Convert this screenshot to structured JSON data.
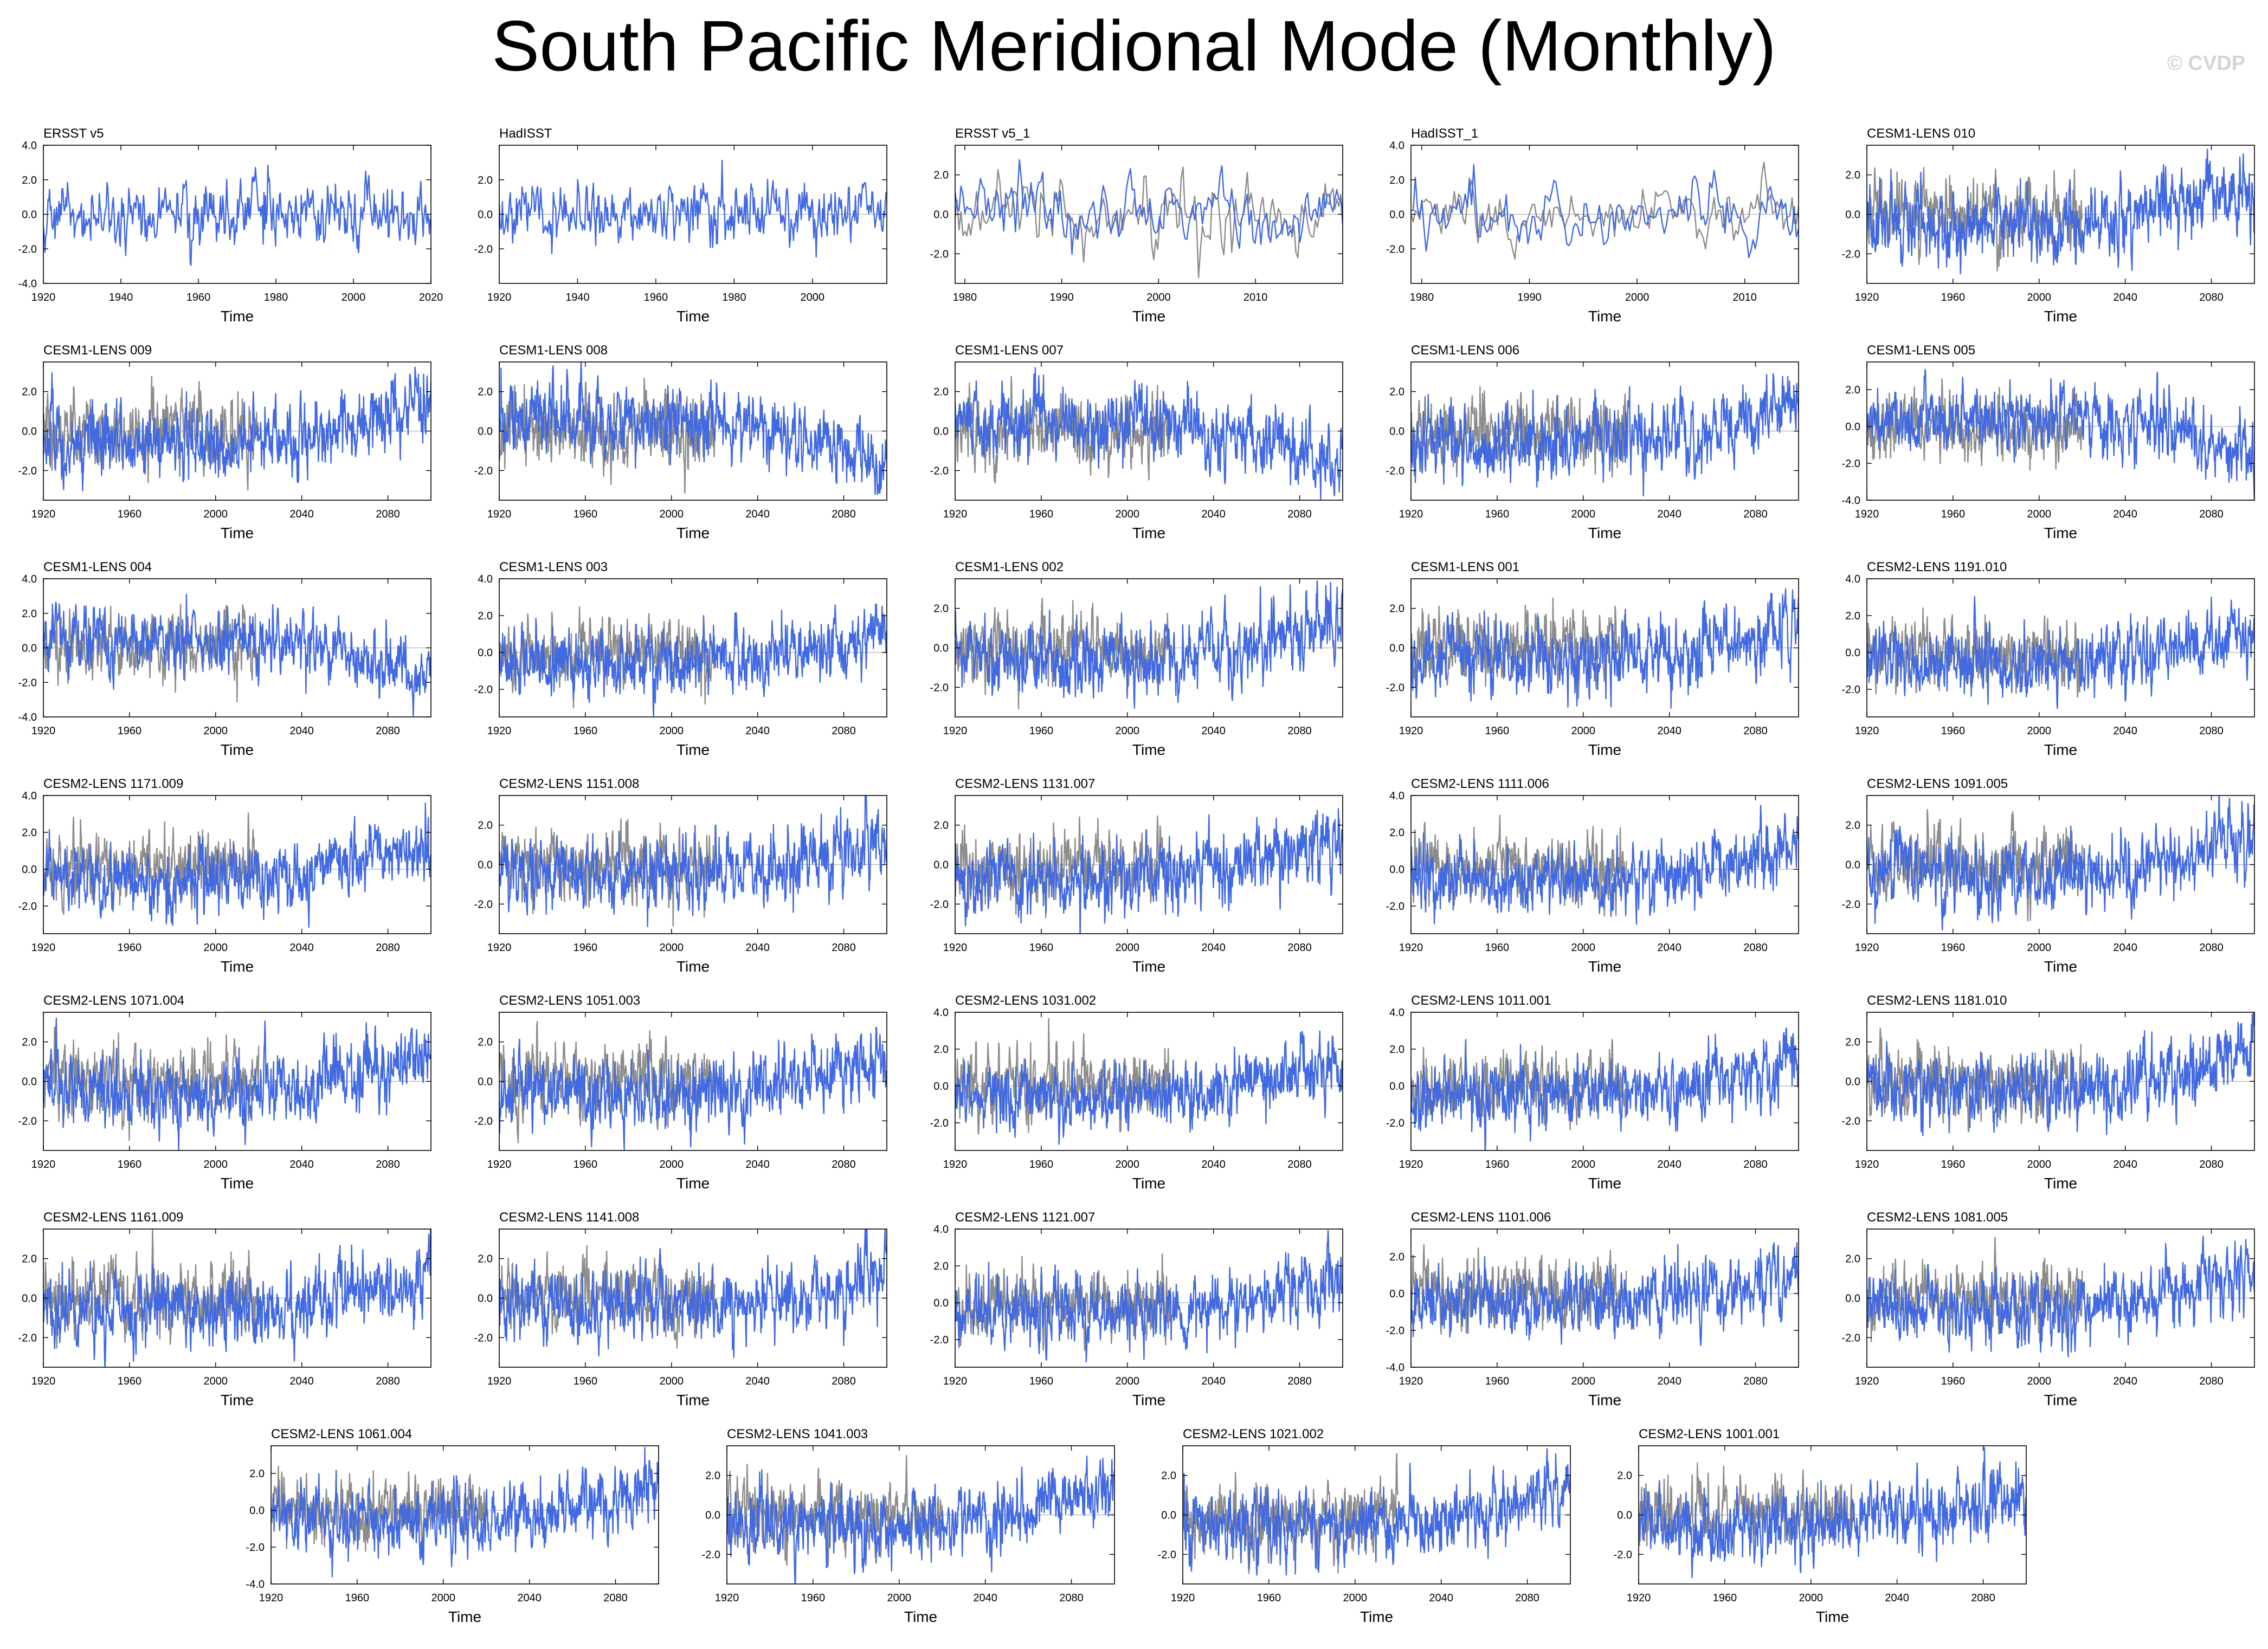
{
  "title": "South Pacific Meridional Mode (Monthly)",
  "copyright": "© CVDP",
  "colors": {
    "primary_series": "#4169e1",
    "reference_series": "#8c8c8c",
    "axes": "#000000"
  },
  "chart_data": {
    "type": "line",
    "xlabel": "Time",
    "panels": [
      {
        "name": "ERSST v5",
        "xticks": [
          "1920",
          "1940",
          "1960",
          "1980",
          "2000",
          "2020"
        ],
        "xlim": [
          1920,
          2020
        ],
        "yticks": [
          "4.0",
          "2.0",
          "0.0",
          "-2.0",
          "-4.0"
        ],
        "ylim": [
          -4,
          4
        ],
        "reference_series": false,
        "trend": "flat",
        "peak_year": 1977
      },
      {
        "name": "HadISST",
        "xticks": [
          "1920",
          "1940",
          "1960",
          "1980",
          "2000"
        ],
        "xlim": [
          1920,
          2019
        ],
        "yticks": [
          "2.0",
          "0.0",
          "-2.0"
        ],
        "ylim": [
          -4,
          4
        ],
        "reference_series": false,
        "trend": "flat",
        "peak_year": 1977
      },
      {
        "name": "ERSST v5_1",
        "xticks": [
          "1980",
          "1990",
          "2000",
          "2010"
        ],
        "xlim": [
          1979,
          2019
        ],
        "yticks": [
          "2.0",
          "0.0",
          "-2.0"
        ],
        "ylim": [
          -3.5,
          3.5
        ],
        "reference_series": true,
        "trend": "flat"
      },
      {
        "name": "HadISST_1",
        "xticks": [
          "1980",
          "1990",
          "2000",
          "2010"
        ],
        "xlim": [
          1979,
          2015
        ],
        "yticks": [
          "4.0",
          "2.0",
          "0.0",
          "-2.0"
        ],
        "ylim": [
          -4,
          4
        ],
        "reference_series": true,
        "trend": "flat"
      },
      {
        "name": "CESM1-LENS 010",
        "xticks": [
          "1920",
          "1960",
          "2000",
          "2040",
          "2080"
        ],
        "xlim": [
          1920,
          2100
        ],
        "yticks": [
          "2.0",
          "0.0",
          "-2.0"
        ],
        "ylim": [
          -3.5,
          3.5
        ],
        "reference_series": true,
        "trend": "up"
      },
      {
        "name": "CESM1-LENS 009",
        "xticks": [
          "1920",
          "1960",
          "2000",
          "2040",
          "2080"
        ],
        "xlim": [
          1920,
          2100
        ],
        "yticks": [
          "2.0",
          "0.0",
          "-2.0"
        ],
        "ylim": [
          -3.5,
          3.5
        ],
        "reference_series": true,
        "trend": "up"
      },
      {
        "name": "CESM1-LENS 008",
        "xticks": [
          "1920",
          "1960",
          "2000",
          "2040",
          "2080"
        ],
        "xlim": [
          1920,
          2100
        ],
        "yticks": [
          "2.0",
          "0.0",
          "-2.0"
        ],
        "ylim": [
          -3.5,
          3.5
        ],
        "reference_series": true,
        "trend": "down"
      },
      {
        "name": "CESM1-LENS 007",
        "xticks": [
          "1920",
          "1960",
          "2000",
          "2040",
          "2080"
        ],
        "xlim": [
          1920,
          2100
        ],
        "yticks": [
          "2.0",
          "0.0",
          "-2.0"
        ],
        "ylim": [
          -3.5,
          3.5
        ],
        "reference_series": true,
        "trend": "down"
      },
      {
        "name": "CESM1-LENS 006",
        "xticks": [
          "1920",
          "1960",
          "2000",
          "2040",
          "2080"
        ],
        "xlim": [
          1920,
          2100
        ],
        "yticks": [
          "2.0",
          "0.0",
          "-2.0"
        ],
        "ylim": [
          -3.5,
          3.5
        ],
        "reference_series": true,
        "trend": "up"
      },
      {
        "name": "CESM1-LENS 005",
        "xticks": [
          "1920",
          "1960",
          "2000",
          "2040",
          "2080"
        ],
        "xlim": [
          1920,
          2100
        ],
        "yticks": [
          "2.0",
          "0.0",
          "-2.0",
          "-4.0"
        ],
        "ylim": [
          -4,
          3.5
        ],
        "reference_series": true,
        "trend": "down"
      },
      {
        "name": "CESM1-LENS 004",
        "xticks": [
          "1920",
          "1960",
          "2000",
          "2040",
          "2080"
        ],
        "xlim": [
          1920,
          2100
        ],
        "yticks": [
          "4.0",
          "2.0",
          "0.0",
          "-2.0",
          "-4.0"
        ],
        "ylim": [
          -4,
          4
        ],
        "reference_series": true,
        "trend": "down"
      },
      {
        "name": "CESM1-LENS 003",
        "xticks": [
          "1920",
          "1960",
          "2000",
          "2040",
          "2080"
        ],
        "xlim": [
          1920,
          2100
        ],
        "yticks": [
          "4.0",
          "2.0",
          "0.0",
          "-2.0"
        ],
        "ylim": [
          -3.5,
          4
        ],
        "reference_series": true,
        "trend": "up"
      },
      {
        "name": "CESM1-LENS 002",
        "xticks": [
          "1920",
          "1960",
          "2000",
          "2040",
          "2080"
        ],
        "xlim": [
          1920,
          2100
        ],
        "yticks": [
          "2.0",
          "0.0",
          "-2.0"
        ],
        "ylim": [
          -3.5,
          3.5
        ],
        "reference_series": true,
        "trend": "up"
      },
      {
        "name": "CESM1-LENS 001",
        "xticks": [
          "1920",
          "1960",
          "2000",
          "2040",
          "2080"
        ],
        "xlim": [
          1920,
          2100
        ],
        "yticks": [
          "2.0",
          "0.0",
          "-2.0"
        ],
        "ylim": [
          -3.5,
          3.5
        ],
        "reference_series": true,
        "trend": "up"
      },
      {
        "name": "CESM2-LENS 1191.010",
        "xticks": [
          "1920",
          "1960",
          "2000",
          "2040",
          "2080"
        ],
        "xlim": [
          1920,
          2100
        ],
        "yticks": [
          "4.0",
          "2.0",
          "0.0",
          "-2.0"
        ],
        "ylim": [
          -3.5,
          4
        ],
        "reference_series": true,
        "trend": "up"
      },
      {
        "name": "CESM2-LENS 1171.009",
        "xticks": [
          "1920",
          "1960",
          "2000",
          "2040",
          "2080"
        ],
        "xlim": [
          1920,
          2100
        ],
        "yticks": [
          "4.0",
          "2.0",
          "0.0",
          "-2.0"
        ],
        "ylim": [
          -3.5,
          4
        ],
        "reference_series": true,
        "trend": "up"
      },
      {
        "name": "CESM2-LENS 1151.008",
        "xticks": [
          "1920",
          "1960",
          "2000",
          "2040",
          "2080"
        ],
        "xlim": [
          1920,
          2100
        ],
        "yticks": [
          "2.0",
          "0.0",
          "-2.0"
        ],
        "ylim": [
          -3.5,
          3.5
        ],
        "reference_series": true,
        "trend": "up"
      },
      {
        "name": "CESM2-LENS 1131.007",
        "xticks": [
          "1920",
          "1960",
          "2000",
          "2040",
          "2080"
        ],
        "xlim": [
          1920,
          2100
        ],
        "yticks": [
          "2.0",
          "0.0",
          "-2.0"
        ],
        "ylim": [
          -3.5,
          3.5
        ],
        "reference_series": true,
        "trend": "up"
      },
      {
        "name": "CESM2-LENS 1111.006",
        "xticks": [
          "1920",
          "1960",
          "2000",
          "2040",
          "2080"
        ],
        "xlim": [
          1920,
          2100
        ],
        "yticks": [
          "4.0",
          "2.0",
          "0.0",
          "-2.0"
        ],
        "ylim": [
          -3.5,
          4
        ],
        "reference_series": true,
        "trend": "up"
      },
      {
        "name": "CESM2-LENS 1091.005",
        "xticks": [
          "1920",
          "1960",
          "2000",
          "2040",
          "2080"
        ],
        "xlim": [
          1920,
          2100
        ],
        "yticks": [
          "2.0",
          "0.0",
          "-2.0"
        ],
        "ylim": [
          -3.5,
          3.5
        ],
        "reference_series": true,
        "trend": "up"
      },
      {
        "name": "CESM2-LENS 1071.004",
        "xticks": [
          "1920",
          "1960",
          "2000",
          "2040",
          "2080"
        ],
        "xlim": [
          1920,
          2100
        ],
        "yticks": [
          "2.0",
          "0.0",
          "-2.0"
        ],
        "ylim": [
          -3.5,
          3.5
        ],
        "reference_series": true,
        "trend": "up"
      },
      {
        "name": "CESM2-LENS 1051.003",
        "xticks": [
          "1920",
          "1960",
          "2000",
          "2040",
          "2080"
        ],
        "xlim": [
          1920,
          2100
        ],
        "yticks": [
          "2.0",
          "0.0",
          "-2.0"
        ],
        "ylim": [
          -3.5,
          3.5
        ],
        "reference_series": true,
        "trend": "up"
      },
      {
        "name": "CESM2-LENS 1031.002",
        "xticks": [
          "1920",
          "1960",
          "2000",
          "2040",
          "2080"
        ],
        "xlim": [
          1920,
          2100
        ],
        "yticks": [
          "4.0",
          "2.0",
          "0.0",
          "-2.0"
        ],
        "ylim": [
          -3.5,
          4
        ],
        "reference_series": true,
        "trend": "up"
      },
      {
        "name": "CESM2-LENS 1011.001",
        "xticks": [
          "1920",
          "1960",
          "2000",
          "2040",
          "2080"
        ],
        "xlim": [
          1920,
          2100
        ],
        "yticks": [
          "4.0",
          "2.0",
          "0.0",
          "-2.0"
        ],
        "ylim": [
          -3.5,
          4
        ],
        "reference_series": true,
        "trend": "up"
      },
      {
        "name": "CESM2-LENS 1181.010",
        "xticks": [
          "1920",
          "1960",
          "2000",
          "2040",
          "2080"
        ],
        "xlim": [
          1920,
          2100
        ],
        "yticks": [
          "2.0",
          "0.0",
          "-2.0"
        ],
        "ylim": [
          -3.5,
          3.5
        ],
        "reference_series": true,
        "trend": "up"
      },
      {
        "name": "CESM2-LENS 1161.009",
        "xticks": [
          "1920",
          "1960",
          "2000",
          "2040",
          "2080"
        ],
        "xlim": [
          1920,
          2100
        ],
        "yticks": [
          "2.0",
          "0.0",
          "-2.0"
        ],
        "ylim": [
          -3.5,
          3.5
        ],
        "reference_series": true,
        "trend": "up"
      },
      {
        "name": "CESM2-LENS 1141.008",
        "xticks": [
          "1920",
          "1960",
          "2000",
          "2040",
          "2080"
        ],
        "xlim": [
          1920,
          2100
        ],
        "yticks": [
          "2.0",
          "0.0",
          "-2.0"
        ],
        "ylim": [
          -3.5,
          3.5
        ],
        "reference_series": true,
        "trend": "up"
      },
      {
        "name": "CESM2-LENS 1121.007",
        "xticks": [
          "1920",
          "1960",
          "2000",
          "2040",
          "2080"
        ],
        "xlim": [
          1920,
          2100
        ],
        "yticks": [
          "4.0",
          "2.0",
          "0.0",
          "-2.0"
        ],
        "ylim": [
          -3.5,
          4
        ],
        "reference_series": true,
        "trend": "up"
      },
      {
        "name": "CESM2-LENS 1101.006",
        "xticks": [
          "1920",
          "1960",
          "2000",
          "2040",
          "2080"
        ],
        "xlim": [
          1920,
          2100
        ],
        "yticks": [
          "2.0",
          "0.0",
          "-2.0",
          "-4.0"
        ],
        "ylim": [
          -4,
          3.5
        ],
        "reference_series": true,
        "trend": "up"
      },
      {
        "name": "CESM2-LENS 1081.005",
        "xticks": [
          "1920",
          "1960",
          "2000",
          "2040",
          "2080"
        ],
        "xlim": [
          1920,
          2100
        ],
        "yticks": [
          "2.0",
          "0.0",
          "-2.0"
        ],
        "ylim": [
          -3.5,
          3.5
        ],
        "reference_series": true,
        "trend": "up"
      },
      {
        "name": "CESM2-LENS 1061.004",
        "xticks": [
          "1920",
          "1960",
          "2000",
          "2040",
          "2080"
        ],
        "xlim": [
          1920,
          2100
        ],
        "yticks": [
          "2.0",
          "0.0",
          "-2.0",
          "-4.0"
        ],
        "ylim": [
          -4,
          3.5
        ],
        "reference_series": true,
        "trend": "up"
      },
      {
        "name": "CESM2-LENS 1041.003",
        "xticks": [
          "1920",
          "1960",
          "2000",
          "2040",
          "2080"
        ],
        "xlim": [
          1920,
          2100
        ],
        "yticks": [
          "2.0",
          "0.0",
          "-2.0"
        ],
        "ylim": [
          -3.5,
          3.5
        ],
        "reference_series": true,
        "trend": "up"
      },
      {
        "name": "CESM2-LENS 1021.002",
        "xticks": [
          "1920",
          "1960",
          "2000",
          "2040",
          "2080"
        ],
        "xlim": [
          1920,
          2100
        ],
        "yticks": [
          "2.0",
          "0.0",
          "-2.0"
        ],
        "ylim": [
          -3.5,
          3.5
        ],
        "reference_series": true,
        "trend": "up"
      },
      {
        "name": "CESM2-LENS 1001.001",
        "xticks": [
          "1920",
          "1960",
          "2000",
          "2040",
          "2080"
        ],
        "xlim": [
          1920,
          2100
        ],
        "yticks": [
          "2.0",
          "0.0",
          "-2.0"
        ],
        "ylim": [
          -3.5,
          3.5
        ],
        "reference_series": true,
        "trend": "up"
      }
    ]
  }
}
